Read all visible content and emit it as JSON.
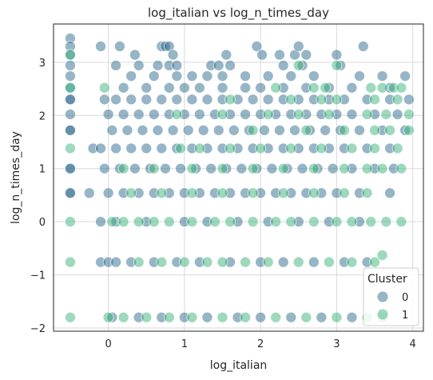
{
  "chart_data": {
    "type": "scatter",
    "title": "log_italian vs log_n_times_day",
    "xlabel": "log_italian",
    "ylabel": "log_n_times_day",
    "xlim": [
      -0.72,
      4.14
    ],
    "ylim": [
      -2.06,
      3.72
    ],
    "xticks": [
      0,
      1,
      2,
      3,
      4
    ],
    "xtick_labels": [
      "0",
      "1",
      "2",
      "3",
      "4"
    ],
    "yticks": [
      -2,
      -1,
      0,
      1,
      2,
      3
    ],
    "ytick_labels": [
      "−2",
      "−1",
      "0",
      "1",
      "2",
      "3"
    ],
    "grid": true,
    "legend": {
      "title": "Cluster",
      "placement": "bottom-right"
    },
    "series": [
      {
        "name": "0",
        "color": "#2e6b8e",
        "points": [
          [
            -0.5,
            3.45
          ],
          [
            -0.5,
            3.3
          ],
          [
            -0.5,
            3.14
          ],
          [
            -0.5,
            2.94
          ],
          [
            -0.5,
            2.74
          ],
          [
            -0.5,
            2.52
          ],
          [
            -0.5,
            2.3
          ],
          [
            -0.5,
            1.72
          ],
          [
            -0.5,
            1.0
          ],
          [
            -0.5,
            0.54
          ],
          [
            -0.1,
            3.3
          ],
          [
            0.15,
            3.3
          ],
          [
            0.35,
            3.14
          ],
          [
            0.7,
            3.3
          ],
          [
            0.75,
            3.3
          ],
          [
            0.8,
            3.3
          ],
          [
            0.85,
            3.14
          ],
          [
            1.55,
            3.14
          ],
          [
            1.95,
            3.3
          ],
          [
            2.02,
            3.14
          ],
          [
            2.25,
            3.14
          ],
          [
            2.45,
            3.14
          ],
          [
            2.5,
            3.3
          ],
          [
            2.6,
            3.14
          ],
          [
            3.0,
            3.14
          ],
          [
            3.35,
            3.3
          ],
          [
            0.1,
            2.94
          ],
          [
            0.4,
            2.94
          ],
          [
            0.65,
            2.94
          ],
          [
            0.8,
            2.94
          ],
          [
            0.9,
            2.94
          ],
          [
            1.35,
            2.94
          ],
          [
            1.45,
            2.94
          ],
          [
            1.6,
            2.94
          ],
          [
            2.3,
            2.94
          ],
          [
            2.55,
            2.94
          ],
          [
            3.05,
            2.94
          ],
          [
            0.3,
            2.74
          ],
          [
            0.6,
            2.74
          ],
          [
            0.9,
            2.74
          ],
          [
            1.1,
            2.74
          ],
          [
            1.3,
            2.74
          ],
          [
            1.5,
            2.74
          ],
          [
            1.8,
            2.74
          ],
          [
            2.1,
            2.74
          ],
          [
            2.4,
            2.74
          ],
          [
            2.7,
            2.74
          ],
          [
            3.3,
            2.74
          ],
          [
            3.6,
            2.74
          ],
          [
            3.9,
            2.74
          ],
          [
            -0.5,
            2.3
          ],
          [
            0.2,
            2.52
          ],
          [
            0.5,
            2.52
          ],
          [
            0.8,
            2.52
          ],
          [
            1.0,
            2.52
          ],
          [
            1.2,
            2.52
          ],
          [
            1.5,
            2.52
          ],
          [
            1.8,
            2.52
          ],
          [
            2.0,
            2.52
          ],
          [
            2.3,
            2.52
          ],
          [
            2.6,
            2.52
          ],
          [
            2.9,
            2.52
          ],
          [
            3.2,
            2.52
          ],
          [
            3.7,
            2.52
          ],
          [
            -0.05,
            2.3
          ],
          [
            0.1,
            2.3
          ],
          [
            0.3,
            2.3
          ],
          [
            0.5,
            2.3
          ],
          [
            0.7,
            2.3
          ],
          [
            0.9,
            2.3
          ],
          [
            1.1,
            2.3
          ],
          [
            1.3,
            2.3
          ],
          [
            1.5,
            2.3
          ],
          [
            1.7,
            2.3
          ],
          [
            1.9,
            2.3
          ],
          [
            2.1,
            2.3
          ],
          [
            2.3,
            2.3
          ],
          [
            2.5,
            2.3
          ],
          [
            2.7,
            2.3
          ],
          [
            2.9,
            2.3
          ],
          [
            3.1,
            2.3
          ],
          [
            3.4,
            2.3
          ],
          [
            3.7,
            2.3
          ],
          [
            3.95,
            2.3
          ],
          [
            -0.5,
            2.02
          ],
          [
            0.0,
            2.02
          ],
          [
            0.2,
            2.02
          ],
          [
            0.4,
            2.02
          ],
          [
            0.6,
            2.02
          ],
          [
            0.8,
            2.02
          ],
          [
            1.0,
            2.02
          ],
          [
            1.2,
            2.02
          ],
          [
            1.4,
            2.02
          ],
          [
            1.6,
            2.02
          ],
          [
            1.8,
            2.02
          ],
          [
            2.0,
            2.02
          ],
          [
            2.2,
            2.02
          ],
          [
            2.4,
            2.02
          ],
          [
            2.6,
            2.02
          ],
          [
            2.8,
            2.02
          ],
          [
            3.0,
            2.02
          ],
          [
            3.2,
            2.02
          ],
          [
            3.5,
            2.02
          ],
          [
            3.8,
            2.02
          ],
          [
            -0.5,
            1.72
          ],
          [
            0.05,
            1.72
          ],
          [
            0.25,
            1.72
          ],
          [
            0.45,
            1.72
          ],
          [
            0.65,
            1.72
          ],
          [
            0.85,
            1.72
          ],
          [
            1.05,
            1.72
          ],
          [
            1.25,
            1.72
          ],
          [
            1.45,
            1.72
          ],
          [
            1.65,
            1.72
          ],
          [
            1.85,
            1.72
          ],
          [
            2.05,
            1.72
          ],
          [
            2.25,
            1.72
          ],
          [
            2.45,
            1.72
          ],
          [
            2.65,
            1.72
          ],
          [
            2.85,
            1.72
          ],
          [
            3.05,
            1.72
          ],
          [
            3.3,
            1.72
          ],
          [
            3.6,
            1.72
          ],
          [
            3.9,
            1.72
          ],
          [
            -0.2,
            1.38
          ],
          [
            -0.1,
            1.38
          ],
          [
            0.1,
            1.38
          ],
          [
            0.3,
            1.38
          ],
          [
            0.5,
            1.38
          ],
          [
            0.7,
            1.38
          ],
          [
            0.9,
            1.38
          ],
          [
            1.1,
            1.38
          ],
          [
            1.3,
            1.38
          ],
          [
            1.5,
            1.38
          ],
          [
            1.7,
            1.38
          ],
          [
            1.9,
            1.38
          ],
          [
            2.1,
            1.38
          ],
          [
            2.3,
            1.38
          ],
          [
            2.5,
            1.38
          ],
          [
            2.7,
            1.38
          ],
          [
            2.9,
            1.38
          ],
          [
            3.1,
            1.38
          ],
          [
            3.4,
            1.38
          ],
          [
            3.7,
            1.38
          ],
          [
            -0.5,
            1.0
          ],
          [
            -0.05,
            1.0
          ],
          [
            0.15,
            1.0
          ],
          [
            0.35,
            1.0
          ],
          [
            0.55,
            1.0
          ],
          [
            0.75,
            1.0
          ],
          [
            0.95,
            1.0
          ],
          [
            1.15,
            1.0
          ],
          [
            1.35,
            1.0
          ],
          [
            1.55,
            1.0
          ],
          [
            1.75,
            1.0
          ],
          [
            1.95,
            1.0
          ],
          [
            2.15,
            1.0
          ],
          [
            2.35,
            1.0
          ],
          [
            2.55,
            1.0
          ],
          [
            2.75,
            1.0
          ],
          [
            2.95,
            1.0
          ],
          [
            3.2,
            1.0
          ],
          [
            3.5,
            1.0
          ],
          [
            3.75,
            1.0
          ],
          [
            -0.5,
            0.54
          ],
          [
            -0.25,
            0.54
          ],
          [
            0.0,
            0.54
          ],
          [
            0.2,
            0.54
          ],
          [
            0.4,
            0.54
          ],
          [
            0.6,
            0.54
          ],
          [
            0.8,
            0.54
          ],
          [
            1.0,
            0.54
          ],
          [
            1.2,
            0.54
          ],
          [
            1.4,
            0.54
          ],
          [
            1.6,
            0.54
          ],
          [
            1.8,
            0.54
          ],
          [
            2.0,
            0.54
          ],
          [
            2.2,
            0.54
          ],
          [
            2.4,
            0.54
          ],
          [
            2.6,
            0.54
          ],
          [
            2.8,
            0.54
          ],
          [
            3.0,
            0.54
          ],
          [
            3.3,
            0.54
          ],
          [
            3.7,
            0.54
          ],
          [
            -0.1,
            0.0
          ],
          [
            0.1,
            0.0
          ],
          [
            0.5,
            0.0
          ],
          [
            1.0,
            0.0
          ],
          [
            1.3,
            0.0
          ],
          [
            1.7,
            0.0
          ],
          [
            2.1,
            0.0
          ],
          [
            2.5,
            0.0
          ],
          [
            2.9,
            0.0
          ],
          [
            3.3,
            0.0
          ],
          [
            -0.1,
            -0.76
          ],
          [
            0.0,
            -0.76
          ],
          [
            0.1,
            -0.76
          ],
          [
            0.3,
            -0.76
          ],
          [
            0.6,
            -0.76
          ],
          [
            0.9,
            -0.76
          ],
          [
            1.2,
            -0.76
          ],
          [
            1.6,
            -0.76
          ],
          [
            2.0,
            -0.76
          ],
          [
            2.3,
            -0.76
          ],
          [
            2.7,
            -0.76
          ],
          [
            3.1,
            -0.76
          ],
          [
            3.4,
            -0.76
          ],
          [
            0.05,
            -1.8
          ],
          [
            0.4,
            -1.8
          ],
          [
            0.7,
            -1.8
          ],
          [
            1.0,
            -1.8
          ],
          [
            1.3,
            -1.8
          ],
          [
            1.7,
            -1.8
          ],
          [
            2.0,
            -1.8
          ],
          [
            2.4,
            -1.8
          ],
          [
            2.8,
            -1.8
          ],
          [
            3.2,
            -1.8
          ],
          [
            3.6,
            -1.8
          ]
        ]
      },
      {
        "name": "1",
        "color": "#3bb37a",
        "points": [
          [
            -0.5,
            3.14
          ],
          [
            -0.5,
            2.52
          ],
          [
            -0.5,
            1.38
          ],
          [
            -0.5,
            0.0
          ],
          [
            -0.5,
            -0.76
          ],
          [
            -0.5,
            -1.8
          ],
          [
            -0.05,
            2.52
          ],
          [
            2.5,
            2.94
          ],
          [
            3.0,
            2.94
          ],
          [
            3.45,
            2.52
          ],
          [
            3.6,
            2.52
          ],
          [
            3.75,
            2.52
          ],
          [
            3.85,
            2.52
          ],
          [
            2.2,
            2.52
          ],
          [
            2.7,
            2.52
          ],
          [
            2.85,
            2.52
          ],
          [
            1.6,
            2.3
          ],
          [
            2.4,
            2.3
          ],
          [
            2.8,
            2.3
          ],
          [
            3.0,
            2.3
          ],
          [
            3.5,
            2.3
          ],
          [
            3.8,
            2.3
          ],
          [
            0.9,
            2.02
          ],
          [
            1.5,
            2.02
          ],
          [
            2.1,
            2.02
          ],
          [
            2.5,
            2.02
          ],
          [
            2.9,
            2.02
          ],
          [
            3.4,
            2.02
          ],
          [
            3.65,
            2.02
          ],
          [
            3.95,
            2.02
          ],
          [
            1.9,
            1.72
          ],
          [
            2.6,
            1.72
          ],
          [
            3.1,
            1.72
          ],
          [
            3.5,
            1.72
          ],
          [
            3.7,
            1.72
          ],
          [
            3.95,
            1.72
          ],
          [
            0.95,
            1.38
          ],
          [
            1.2,
            1.38
          ],
          [
            1.6,
            1.38
          ],
          [
            2.0,
            1.38
          ],
          [
            2.4,
            1.38
          ],
          [
            2.8,
            1.38
          ],
          [
            3.2,
            1.38
          ],
          [
            3.5,
            1.38
          ],
          [
            3.8,
            1.38
          ],
          [
            0.2,
            1.0
          ],
          [
            0.6,
            1.0
          ],
          [
            1.1,
            1.0
          ],
          [
            1.5,
            1.0
          ],
          [
            1.9,
            1.0
          ],
          [
            2.3,
            1.0
          ],
          [
            2.7,
            1.0
          ],
          [
            3.1,
            1.0
          ],
          [
            3.4,
            1.0
          ],
          [
            3.6,
            1.0
          ],
          [
            3.85,
            1.0
          ],
          [
            0.3,
            0.54
          ],
          [
            0.7,
            0.54
          ],
          [
            1.1,
            0.54
          ],
          [
            1.5,
            0.54
          ],
          [
            1.9,
            0.54
          ],
          [
            2.3,
            0.54
          ],
          [
            2.7,
            0.54
          ],
          [
            3.1,
            0.54
          ],
          [
            3.4,
            0.54
          ],
          [
            0.05,
            0.0
          ],
          [
            0.2,
            0.0
          ],
          [
            0.4,
            0.0
          ],
          [
            0.6,
            0.0
          ],
          [
            0.8,
            0.0
          ],
          [
            1.1,
            0.0
          ],
          [
            1.4,
            0.0
          ],
          [
            1.6,
            0.0
          ],
          [
            1.9,
            0.0
          ],
          [
            2.2,
            0.0
          ],
          [
            2.4,
            0.0
          ],
          [
            2.7,
            0.0
          ],
          [
            3.0,
            0.0
          ],
          [
            3.2,
            0.0
          ],
          [
            3.45,
            0.0
          ],
          [
            3.65,
            0.0
          ],
          [
            3.85,
            0.0
          ],
          [
            0.4,
            -0.76
          ],
          [
            0.7,
            -0.76
          ],
          [
            1.0,
            -0.76
          ],
          [
            1.3,
            -0.76
          ],
          [
            1.5,
            -0.76
          ],
          [
            1.8,
            -0.76
          ],
          [
            2.1,
            -0.76
          ],
          [
            2.5,
            -0.76
          ],
          [
            2.9,
            -0.76
          ],
          [
            3.2,
            -0.76
          ],
          [
            3.5,
            -0.76
          ],
          [
            3.6,
            -0.63
          ],
          [
            0.0,
            -1.8
          ],
          [
            0.2,
            -1.8
          ],
          [
            0.5,
            -1.8
          ],
          [
            0.8,
            -1.8
          ],
          [
            1.1,
            -1.8
          ],
          [
            1.5,
            -1.8
          ],
          [
            1.8,
            -1.8
          ],
          [
            2.2,
            -1.8
          ],
          [
            2.6,
            -1.8
          ],
          [
            3.0,
            -1.8
          ],
          [
            3.4,
            -1.8
          ]
        ]
      }
    ]
  }
}
